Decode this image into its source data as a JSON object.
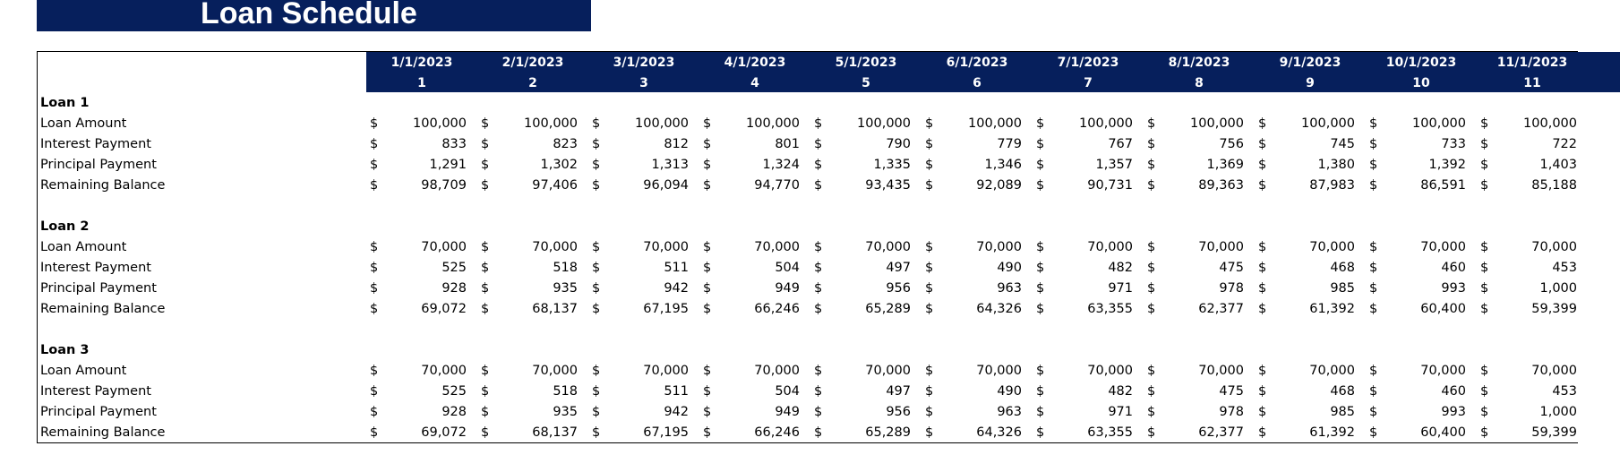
{
  "title": "Loan Schedule",
  "columns": [
    {
      "date": "1/1/2023",
      "period": "1"
    },
    {
      "date": "2/1/2023",
      "period": "2"
    },
    {
      "date": "3/1/2023",
      "period": "3"
    },
    {
      "date": "4/1/2023",
      "period": "4"
    },
    {
      "date": "5/1/2023",
      "period": "5"
    },
    {
      "date": "6/1/2023",
      "period": "6"
    },
    {
      "date": "7/1/2023",
      "period": "7"
    },
    {
      "date": "8/1/2023",
      "period": "8"
    },
    {
      "date": "9/1/2023",
      "period": "9"
    },
    {
      "date": "10/1/2023",
      "period": "10"
    },
    {
      "date": "11/1/2023",
      "period": "11"
    }
  ],
  "currency_symbol": "$",
  "loans": [
    {
      "name": "Loan 1",
      "rows": [
        {
          "label": "Loan Amount",
          "values": [
            "100,000",
            "100,000",
            "100,000",
            "100,000",
            "100,000",
            "100,000",
            "100,000",
            "100,000",
            "100,000",
            "100,000",
            "100,000"
          ]
        },
        {
          "label": "Interest Payment",
          "values": [
            "833",
            "823",
            "812",
            "801",
            "790",
            "779",
            "767",
            "756",
            "745",
            "733",
            "722"
          ]
        },
        {
          "label": "Principal Payment",
          "values": [
            "1,291",
            "1,302",
            "1,313",
            "1,324",
            "1,335",
            "1,346",
            "1,357",
            "1,369",
            "1,380",
            "1,392",
            "1,403"
          ]
        },
        {
          "label": "Remaining Balance",
          "values": [
            "98,709",
            "97,406",
            "96,094",
            "94,770",
            "93,435",
            "92,089",
            "90,731",
            "89,363",
            "87,983",
            "86,591",
            "85,188"
          ]
        }
      ]
    },
    {
      "name": "Loan 2",
      "rows": [
        {
          "label": "Loan Amount",
          "values": [
            "70,000",
            "70,000",
            "70,000",
            "70,000",
            "70,000",
            "70,000",
            "70,000",
            "70,000",
            "70,000",
            "70,000",
            "70,000"
          ]
        },
        {
          "label": "Interest Payment",
          "values": [
            "525",
            "518",
            "511",
            "504",
            "497",
            "490",
            "482",
            "475",
            "468",
            "460",
            "453"
          ]
        },
        {
          "label": "Principal Payment",
          "values": [
            "928",
            "935",
            "942",
            "949",
            "956",
            "963",
            "971",
            "978",
            "985",
            "993",
            "1,000"
          ]
        },
        {
          "label": "Remaining Balance",
          "values": [
            "69,072",
            "68,137",
            "67,195",
            "66,246",
            "65,289",
            "64,326",
            "63,355",
            "62,377",
            "61,392",
            "60,400",
            "59,399"
          ]
        }
      ]
    },
    {
      "name": "Loan 3",
      "rows": [
        {
          "label": "Loan Amount",
          "values": [
            "70,000",
            "70,000",
            "70,000",
            "70,000",
            "70,000",
            "70,000",
            "70,000",
            "70,000",
            "70,000",
            "70,000",
            "70,000"
          ]
        },
        {
          "label": "Interest Payment",
          "values": [
            "525",
            "518",
            "511",
            "504",
            "497",
            "490",
            "482",
            "475",
            "468",
            "460",
            "453"
          ]
        },
        {
          "label": "Principal Payment",
          "values": [
            "928",
            "935",
            "942",
            "949",
            "956",
            "963",
            "971",
            "978",
            "985",
            "993",
            "1,000"
          ]
        },
        {
          "label": "Remaining Balance",
          "values": [
            "69,072",
            "68,137",
            "67,195",
            "66,246",
            "65,289",
            "64,326",
            "63,355",
            "62,377",
            "61,392",
            "60,400",
            "59,399"
          ]
        }
      ]
    }
  ],
  "colors": {
    "header_bg": "#061f5c",
    "header_text": "#ffffff"
  }
}
